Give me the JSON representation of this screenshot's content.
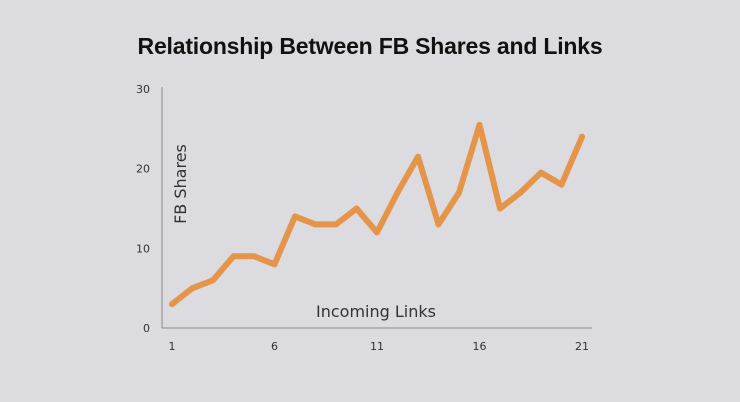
{
  "chart_data": {
    "type": "line",
    "title": "Relationship Between FB Shares and Links",
    "xlabel": "Incoming Links",
    "ylabel": "FB Shares",
    "x": [
      1,
      2,
      3,
      4,
      5,
      6,
      7,
      8,
      9,
      10,
      11,
      12,
      13,
      14,
      15,
      16,
      17,
      18,
      19,
      20,
      21
    ],
    "series": [
      {
        "values": [
          3,
          5,
          6,
          9,
          9,
          8,
          14,
          13,
          13,
          15,
          12,
          17,
          21.5,
          13,
          17,
          25.5,
          15,
          17,
          19.5,
          18,
          24
        ]
      }
    ],
    "x_ticks": [
      1,
      6,
      11,
      16,
      21
    ],
    "y_ticks": [
      0,
      10,
      20,
      30
    ],
    "xlim": [
      1,
      21
    ],
    "ylim": [
      0,
      30
    ],
    "grid": false,
    "line_color": "#e5954a"
  }
}
